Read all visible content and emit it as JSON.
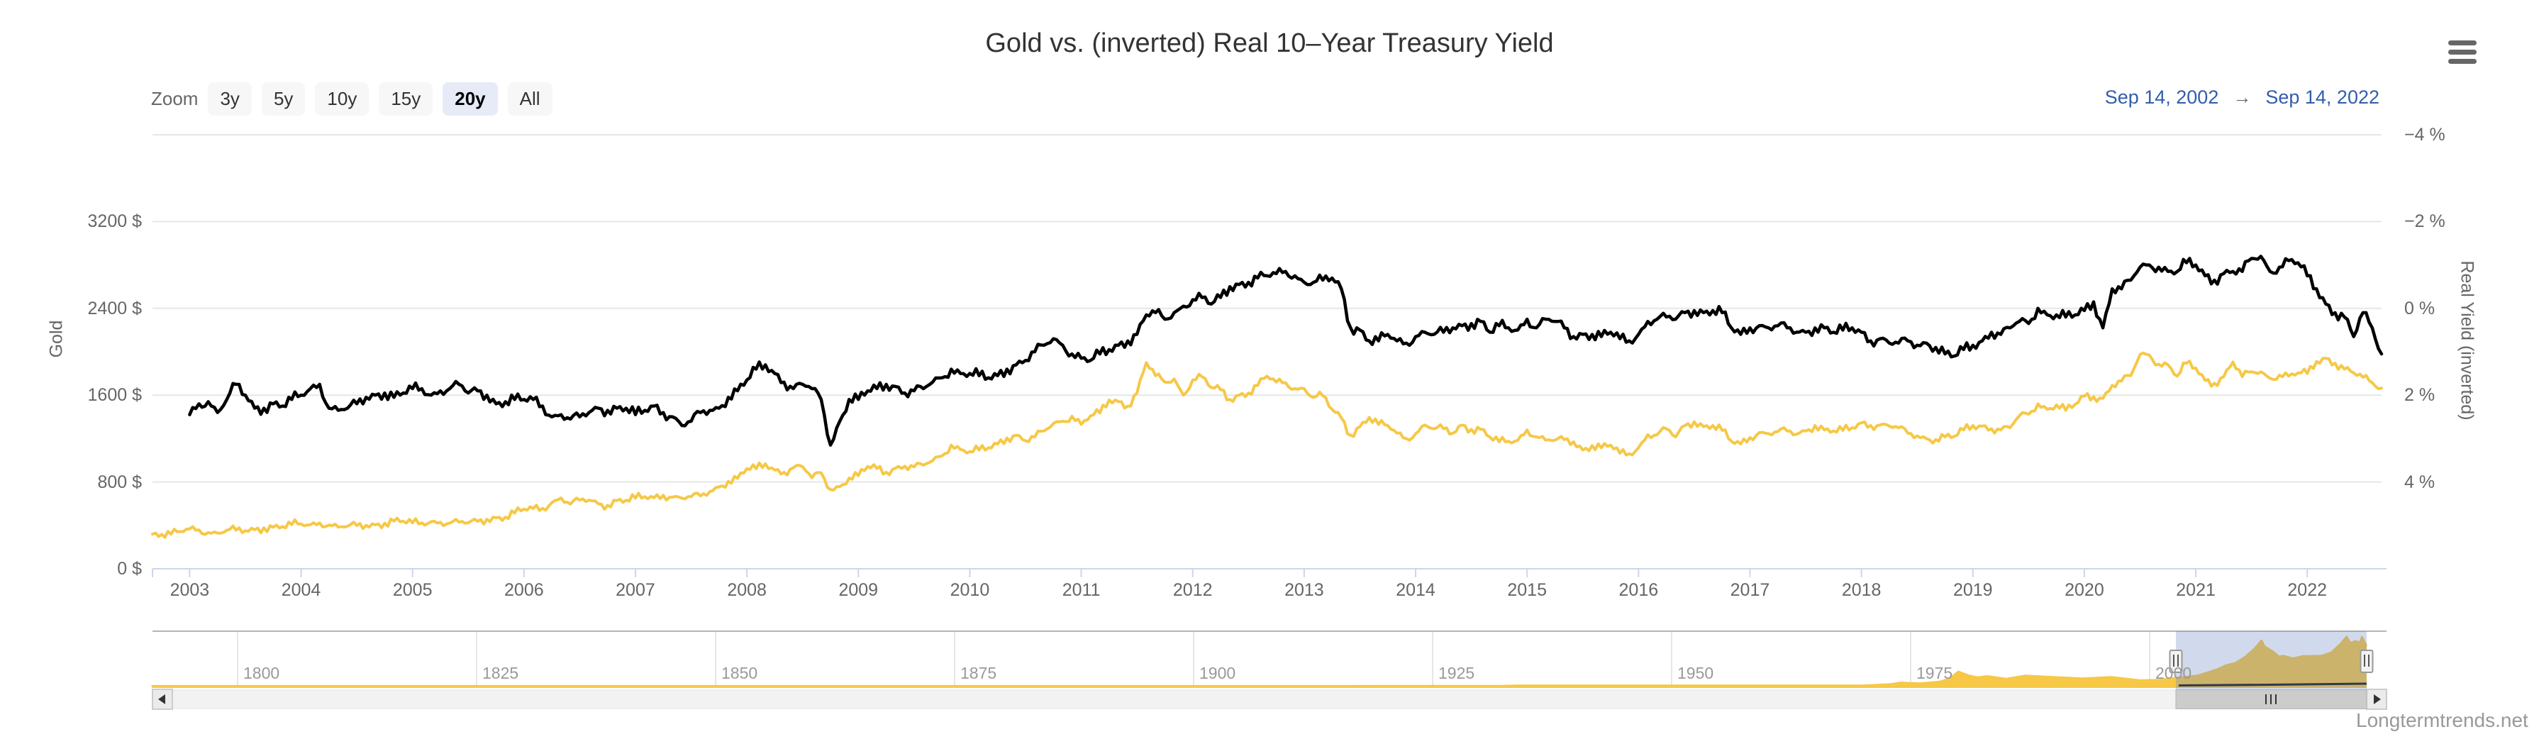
{
  "title": "Gold vs. (inverted) Real 10–Year Treasury Yield",
  "menu_button": {
    "icon": "hamburger-icon"
  },
  "range_selector": {
    "zoom_label": "Zoom",
    "buttons": [
      {
        "label": "3y",
        "selected": false
      },
      {
        "label": "5y",
        "selected": false
      },
      {
        "label": "10y",
        "selected": false
      },
      {
        "label": "15y",
        "selected": false
      },
      {
        "label": "20y",
        "selected": true
      },
      {
        "label": "All",
        "selected": false
      }
    ],
    "from_date": "Sep 14, 2002",
    "arrow": "→",
    "to_date": "Sep 14, 2022"
  },
  "watermark": "Longtermtrends.net",
  "colors": {
    "gold": "#F6C846",
    "yield_line": "#000000",
    "gridline": "#e6e6e6",
    "axis_line": "#ccd6eb",
    "label": "#666666",
    "nav_label": "#999999",
    "nav_border": "#b4b4b4",
    "selection_mask": "rgba(102,133,194,0.3)",
    "date_text": "#335cad",
    "button_bg": "#f7f7f7",
    "selected_button_bg": "#e6ebf7",
    "scrollbar_track": "#f2f2f2",
    "scrollbar_thumb": "#cccccc",
    "scrollbar_button": "#ebebeb"
  },
  "chart_data": {
    "type": "line",
    "title": "Gold vs. (inverted) Real 10–Year Treasury Yield",
    "x_axis": {
      "start": "Sep 14, 2002",
      "end": "Sep 14, 2022",
      "tick_years": [
        2003,
        2004,
        2005,
        2006,
        2007,
        2008,
        2009,
        2010,
        2011,
        2012,
        2013,
        2014,
        2015,
        2016,
        2017,
        2018,
        2019,
        2020,
        2021,
        2022
      ]
    },
    "left_axis": {
      "title": "Gold",
      "unit": "$",
      "tick_labels": [
        "3200 $",
        "2400 $",
        "1600 $",
        "800 $",
        "0 $"
      ],
      "tick_values": [
        3200,
        2400,
        1600,
        800,
        0
      ],
      "range": [
        0,
        4000
      ],
      "grid": true
    },
    "right_axis": {
      "title": "Real Yield (inverted)",
      "unit": "%",
      "inverted": true,
      "tick_labels": [
        "−4 %",
        "−2 %",
        "0 %",
        "2 %",
        "4 %"
      ],
      "tick_values": [
        -4,
        -2,
        0,
        2,
        4
      ],
      "range": [
        -4,
        6
      ]
    },
    "series": [
      {
        "name": "Gold",
        "color": "#F6C846",
        "axis": "left",
        "start_month": "2002-09",
        "values_monthly_usd": [
          319,
          317,
          319,
          343,
          368,
          359,
          334,
          328,
          355,
          356,
          351,
          360,
          378,
          383,
          389,
          407,
          414,
          405,
          423,
          403,
          384,
          392,
          398,
          400,
          405,
          420,
          439,
          438,
          424,
          423,
          434,
          429,
          421,
          430,
          424,
          437,
          456,
          469,
          476,
          513,
          550,
          555,
          557,
          610,
          653,
          596,
          633,
          632,
          599,
          585,
          629,
          632,
          651,
          665,
          655,
          677,
          661,
          650,
          665,
          672,
          712,
          754,
          806,
          834,
          923,
          922,
          968,
          909,
          889,
          930,
          940,
          839,
          884,
          730,
          757,
          836,
          858,
          943,
          924,
          890,
          928,
          946,
          939,
          955,
          996,
          1040,
          1140,
          1100,
          1080,
          1095,
          1115,
          1150,
          1205,
          1230,
          1180,
          1215,
          1270,
          1340,
          1360,
          1405,
          1330,
          1410,
          1435,
          1555,
          1540,
          1500,
          1620,
          1900,
          1780,
          1720,
          1750,
          1600,
          1740,
          1770,
          1670,
          1650,
          1560,
          1600,
          1620,
          1690,
          1775,
          1720,
          1715,
          1660,
          1660,
          1580,
          1595,
          1470,
          1390,
          1230,
          1310,
          1395,
          1330,
          1320,
          1250,
          1200,
          1245,
          1325,
          1290,
          1290,
          1250,
          1325,
          1285,
          1285,
          1215,
          1170,
          1175,
          1185,
          1280,
          1215,
          1185,
          1185,
          1190,
          1170,
          1095,
          1135,
          1115,
          1140,
          1065,
          1060,
          1115,
          1235,
          1235,
          1290,
          1215,
          1320,
          1355,
          1310,
          1320,
          1275,
          1175,
          1150,
          1210,
          1255,
          1245,
          1265,
          1270,
          1240,
          1270,
          1320,
          1280,
          1270,
          1275,
          1300,
          1345,
          1320,
          1325,
          1315,
          1300,
          1250,
          1225,
          1200,
          1190,
          1215,
          1220,
          1280,
          1320,
          1315,
          1290,
          1280,
          1300,
          1410,
          1425,
          1520,
          1470,
          1510,
          1460,
          1515,
          1590,
          1585,
          1570,
          1690,
          1730,
          1780,
          1975,
          1970,
          1885,
          1880,
          1775,
          1895,
          1850,
          1735,
          1710,
          1770,
          1905,
          1770,
          1815,
          1815,
          1755,
          1785,
          1775,
          1805,
          1800,
          1910,
          1940,
          1895,
          1840,
          1805,
          1765,
          1715,
          1665
        ]
      },
      {
        "name": "Real 10-Year Treasury Yield",
        "color": "#000000",
        "axis": "right",
        "start_month": "2003-01",
        "values_monthly_pct": [
          2.45,
          2.2,
          2.15,
          2.4,
          2.1,
          1.75,
          2.0,
          2.3,
          2.3,
          2.2,
          2.25,
          2.1,
          2.0,
          1.85,
          1.75,
          2.3,
          2.35,
          2.3,
          2.2,
          2.05,
          2.0,
          1.95,
          2.05,
          1.95,
          1.85,
          1.85,
          2.0,
          1.9,
          1.85,
          1.75,
          1.95,
          1.9,
          2.0,
          2.2,
          2.15,
          2.1,
          2.1,
          2.1,
          2.25,
          2.5,
          2.45,
          2.55,
          2.5,
          2.4,
          2.3,
          2.35,
          2.3,
          2.3,
          2.45,
          2.35,
          2.25,
          2.4,
          2.5,
          2.7,
          2.6,
          2.4,
          2.35,
          2.3,
          2.05,
          1.9,
          1.65,
          1.4,
          1.3,
          1.5,
          1.7,
          1.85,
          1.75,
          1.85,
          2.1,
          3.15,
          2.6,
          2.1,
          2.1,
          1.9,
          1.85,
          1.75,
          1.8,
          1.95,
          1.9,
          1.85,
          1.7,
          1.6,
          1.4,
          1.5,
          1.5,
          1.55,
          1.6,
          1.55,
          1.4,
          1.3,
          1.2,
          1.0,
          0.85,
          0.7,
          0.85,
          1.05,
          1.15,
          1.2,
          1.05,
          0.95,
          0.85,
          0.75,
          0.6,
          0.15,
          0.1,
          0.25,
          0.1,
          -0.05,
          -0.2,
          -0.25,
          -0.1,
          -0.25,
          -0.5,
          -0.55,
          -0.6,
          -0.7,
          -0.75,
          -0.8,
          -0.85,
          -0.75,
          -0.6,
          -0.6,
          -0.65,
          -0.7,
          -0.45,
          0.45,
          0.5,
          0.75,
          0.75,
          0.6,
          0.75,
          0.8,
          0.65,
          0.55,
          0.6,
          0.55,
          0.45,
          0.4,
          0.35,
          0.3,
          0.55,
          0.4,
          0.45,
          0.5,
          0.25,
          0.45,
          0.25,
          0.3,
          0.45,
          0.65,
          0.6,
          0.6,
          0.65,
          0.55,
          0.7,
          0.75,
          0.6,
          0.3,
          0.25,
          0.2,
          0.25,
          0.1,
          0.05,
          0.1,
          0.05,
          0.1,
          0.45,
          0.6,
          0.45,
          0.4,
          0.45,
          0.4,
          0.45,
          0.55,
          0.55,
          0.45,
          0.45,
          0.55,
          0.5,
          0.45,
          0.55,
          0.75,
          0.7,
          0.8,
          0.8,
          0.75,
          0.85,
          0.8,
          0.9,
          1.05,
          1.1,
          0.95,
          0.85,
          0.75,
          0.55,
          0.6,
          0.45,
          0.3,
          0.35,
          0.0,
          0.15,
          0.15,
          0.2,
          0.15,
          0.05,
          -0.15,
          0.45,
          -0.45,
          -0.45,
          -0.65,
          -0.95,
          -1.0,
          -0.95,
          -0.85,
          -0.85,
          -1.05,
          -1.0,
          -0.75,
          -0.65,
          -0.8,
          -0.85,
          -0.85,
          -1.15,
          -1.2,
          -0.85,
          -0.95,
          -1.1,
          -1.05,
          -0.75,
          -0.45,
          -0.1,
          0.1,
          0.2,
          0.65,
          0.1,
          0.45,
          1.05
        ]
      }
    ],
    "navigator": {
      "tick_years": [
        1800,
        1825,
        1850,
        1875,
        1900,
        1925,
        1950,
        1975,
        2000
      ],
      "selected_range": [
        "Sep 14, 2002",
        "Sep 14, 2022"
      ],
      "gold_points_year_usd": [
        [
          1791,
          19
        ],
        [
          1850,
          18.9
        ],
        [
          1910,
          18.9
        ],
        [
          1920,
          20.7
        ],
        [
          1932,
          20.7
        ],
        [
          1934,
          35
        ],
        [
          1967,
          35
        ],
        [
          1970,
          36
        ],
        [
          1973,
          97
        ],
        [
          1974,
          159
        ],
        [
          1976,
          124
        ],
        [
          1978,
          193
        ],
        [
          1979,
          307
        ],
        [
          1980,
          615
        ],
        [
          1981,
          460
        ],
        [
          1982,
          375
        ],
        [
          1983,
          424
        ],
        [
          1985,
          317
        ],
        [
          1987,
          447
        ],
        [
          1990,
          383
        ],
        [
          1993,
          330
        ],
        [
          1996,
          388
        ],
        [
          1999,
          253
        ],
        [
          2001,
          271
        ],
        [
          2003,
          363
        ],
        [
          2005,
          445
        ],
        [
          2007,
          695
        ],
        [
          2008,
          872
        ],
        [
          2009,
          972
        ],
        [
          2010,
          1225
        ],
        [
          2011,
          1572
        ],
        [
          2011.7,
          1895
        ],
        [
          2012,
          1660
        ],
        [
          2013,
          1411
        ],
        [
          2013.5,
          1235
        ],
        [
          2014,
          1266
        ],
        [
          2015,
          1160
        ],
        [
          2016,
          1250
        ],
        [
          2017,
          1257
        ],
        [
          2018,
          1268
        ],
        [
          2019,
          1400
        ],
        [
          2020,
          1770
        ],
        [
          2020.6,
          2050
        ],
        [
          2021,
          1800
        ],
        [
          2021.5,
          1870
        ],
        [
          2022,
          1820
        ],
        [
          2022.2,
          2040
        ],
        [
          2022.7,
          1665
        ]
      ]
    }
  }
}
